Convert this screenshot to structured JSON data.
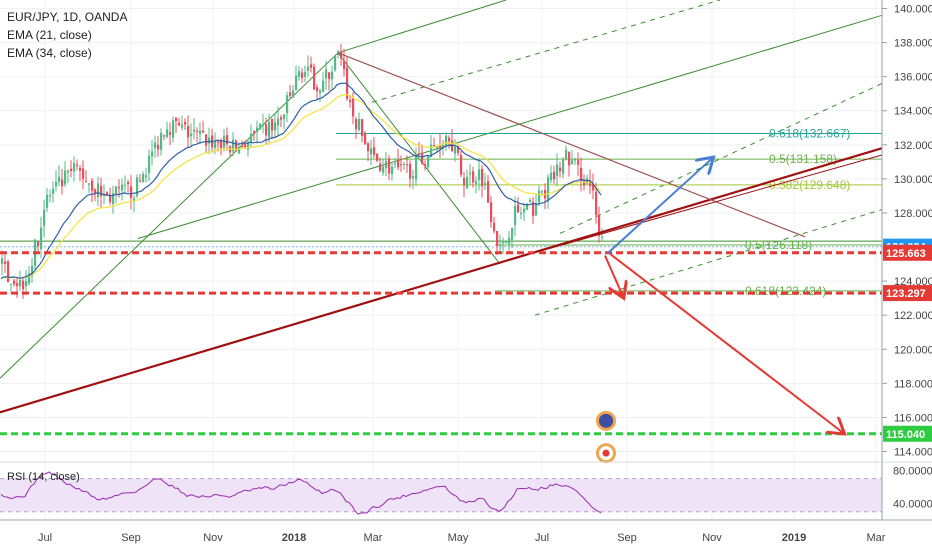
{
  "legend": {
    "symbol": "EUR/JPY, 1D, OANDA",
    "ema1": "EMA (21, close)",
    "ema2": "EMA (34, close)"
  },
  "rsi_label": "RSI (14, close)",
  "colors": {
    "up": "#53b987",
    "down": "#eb4d5c",
    "ema21": "#2e5ea8",
    "ema34": "#f4e23a",
    "trend_dark": "#a01111",
    "trend_soft": "#b36060",
    "channel": "#3a8e2e",
    "fib": "#6ab04c",
    "fib_mid": "#a5c639",
    "target": "#e53935",
    "target_green": "#2ecc40",
    "projection_blue": "#4a7fd3",
    "rsi": "#9c27b0",
    "rsi_bg": "#efe4f7"
  },
  "chart_data": {
    "type": "candlestick",
    "title": "EUR/JPY, 1D, OANDA",
    "indicators": [
      "EMA (21, close)",
      "EMA (34, close)",
      "RSI (14, close)"
    ],
    "y_range": [
      113.5,
      140.5
    ],
    "y_ticks": [
      "140.000",
      "138.000",
      "136.000",
      "134.000",
      "132.000",
      "130.000",
      "128.000",
      "126.000",
      "124.000",
      "122.000",
      "120.000",
      "118.000",
      "116.000",
      "114.000"
    ],
    "x_ticks": [
      "Jul",
      "Sep",
      "Nov",
      "2018",
      "Mar",
      "May",
      "Jul",
      "Sep",
      "Nov",
      "2019",
      "Mar"
    ],
    "price_markers": [
      {
        "label": "126.024",
        "value": 126.024,
        "color": "#2196f3"
      },
      {
        "label": "125.663",
        "value": 125.663,
        "color": "#e53935"
      },
      {
        "label": "123.297",
        "value": 123.297,
        "color": "#e53935"
      },
      {
        "label": "115.040",
        "value": 115.04,
        "color": "#2ecc40"
      }
    ],
    "fib_levels": [
      {
        "label": "0.618(132.667)",
        "value": 132.667
      },
      {
        "label": "0.5(131.158)",
        "value": 131.158
      },
      {
        "label": "0.382(129.648)",
        "value": 129.648
      },
      {
        "label": "0.5(126.118)",
        "value": 126.118
      },
      {
        "label": "0.618(123.424)",
        "value": 123.424
      }
    ],
    "rsi": {
      "ticks": [
        "80.0000",
        "40.0000"
      ],
      "range": [
        20,
        90
      ]
    }
  }
}
